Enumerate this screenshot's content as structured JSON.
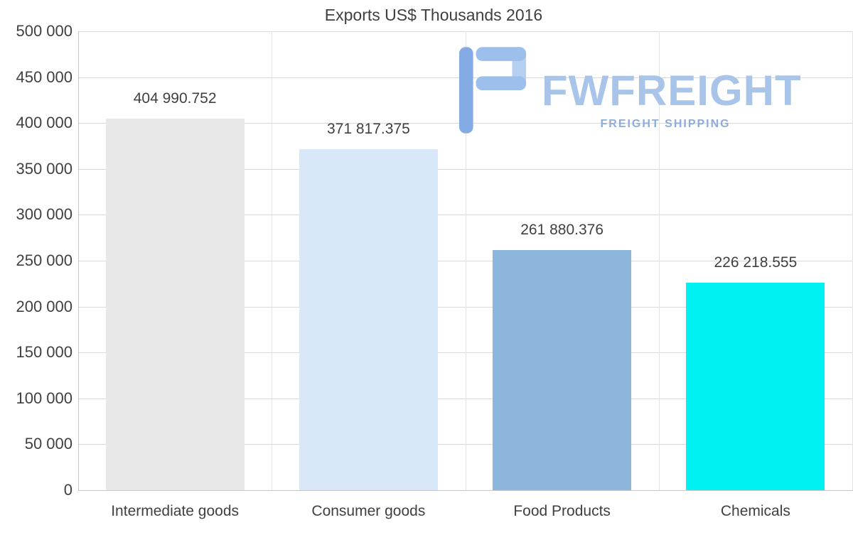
{
  "title": "Exports US$ Thousands 2016",
  "watermark": {
    "name": "FWFREIGHT",
    "tagline": "FREIGHT SHIPPING",
    "name_color": "#a9c4e9",
    "tagline_color": "#8cacdb",
    "glyph_dark": "#84abe3",
    "glyph_light": "#a9c7ee"
  },
  "chart_data": {
    "type": "bar",
    "title": "Exports US$ Thousands 2016",
    "categories": [
      "Intermediate goods",
      "Consumer goods",
      "Food Products",
      "Chemicals"
    ],
    "values": [
      404990.752,
      371817.375,
      261880.376,
      226218.555
    ],
    "value_labels": [
      "404 990.752",
      "371 817.375",
      "261 880.376",
      "226 218.555"
    ],
    "bar_colors": [
      "#e8e8e8",
      "#d9e8f8",
      "#8cb6dc",
      "#00f1f1"
    ],
    "xlabel": "",
    "ylabel": "",
    "ylim": [
      0,
      500000
    ],
    "ytick_step": 50000,
    "ytick_labels": [
      "0",
      "50 000",
      "100 000",
      "150 000",
      "200 000",
      "250 000",
      "300 000",
      "350 000",
      "400 000",
      "450 000",
      "500 000"
    ],
    "grid": true,
    "legend": false
  }
}
